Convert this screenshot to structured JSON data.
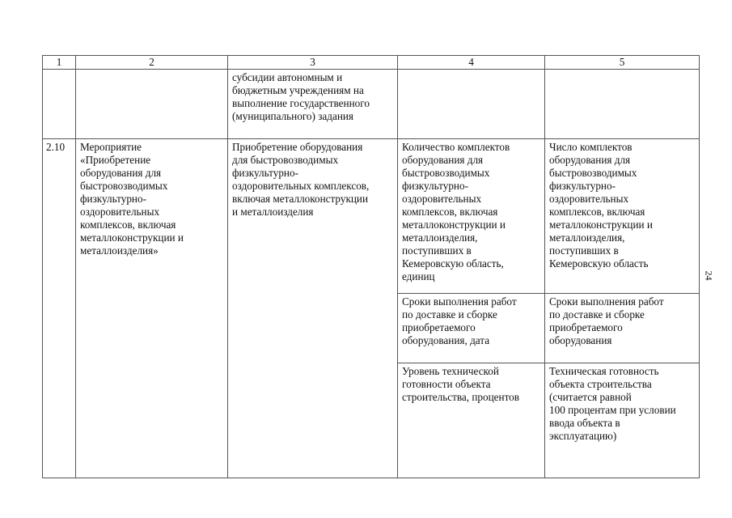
{
  "header": [
    "1",
    "2",
    "3",
    "4",
    "5"
  ],
  "row_continued": {
    "col3": "субсидии автономным и\nбюджетным учреждениям на\nвыполнение государственного\n(муниципального) задания"
  },
  "row_2_10": {
    "number": "2.10",
    "event": "Мероприятие\n«Приобретение\nоборудования для\nбыстровозводимых\nфизкультурно-\nоздоровительных\nкомплексов, включая\nметаллоконструкции и\nметаллоизделия»",
    "description": "Приобретение оборудования\nдля быстровозводимых\nфизкультурно-\nоздоровительных комплексов,\nвключая металлоконструкции\nи металлоизделия",
    "indicators": [
      {
        "name": "Количество комплектов\nоборудования для\nбыстровозводимых\nфизкультурно-\nоздоровительных\nкомплексов, включая\nметаллоконструкции и\nметаллоизделия,\nпоступивших в\nКемеровскую область,\nединиц",
        "method": "Число  комплектов\nоборудования для\nбыстровозводимых\nфизкультурно-\nоздоровительных\nкомплексов, включая\nметаллоконструкции и\nметаллоизделия,\nпоступивших в\nКемеровскую область"
      },
      {
        "name": "Сроки выполнения работ\nпо доставке и сборке\nприобретаемого\nоборудования, дата",
        "method": "Сроки выполнения работ\nпо доставке и сборке\nприобретаемого\nоборудования"
      },
      {
        "name": "Уровень технической\nготовности объекта\nстроительства, процентов",
        "method": "Техническая готовность\nобъекта строительства\n(считается равной\n100 процентам при условии\nввода объекта в\nэксплуатацию)"
      }
    ]
  },
  "page_number": "24"
}
